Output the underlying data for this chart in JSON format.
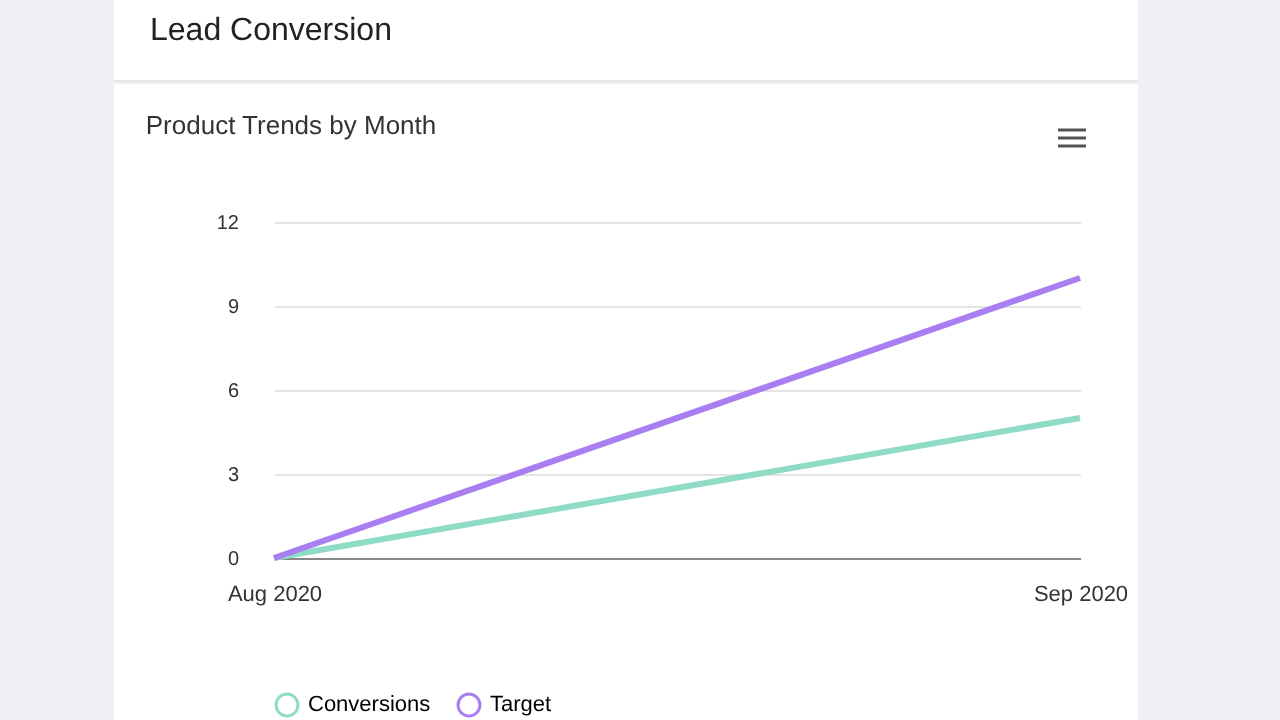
{
  "chart_data": {
    "type": "line",
    "title": "Lead Conversion",
    "subtitle": "Product Trends by Month",
    "x": [
      "2020-08",
      "2020-09"
    ],
    "series": [
      {
        "name": "Conversions",
        "color": "#8fdcc6",
        "values": [
          0,
          5
        ]
      },
      {
        "name": "Target",
        "color": "#a87ef0",
        "values": [
          0,
          10
        ]
      }
    ],
    "xlim": [
      "2020-08",
      "2020-09"
    ],
    "xticks": [
      {
        "value": "2020-08",
        "label": "Aug 2020"
      },
      {
        "value": "2020-09",
        "label": "Sep 2020"
      }
    ],
    "ylim": [
      0,
      12
    ],
    "yticks": [
      0,
      3,
      6,
      9,
      12
    ],
    "grid": "y",
    "legend": "bottom",
    "marker": "none",
    "line_style": "solid"
  }
}
